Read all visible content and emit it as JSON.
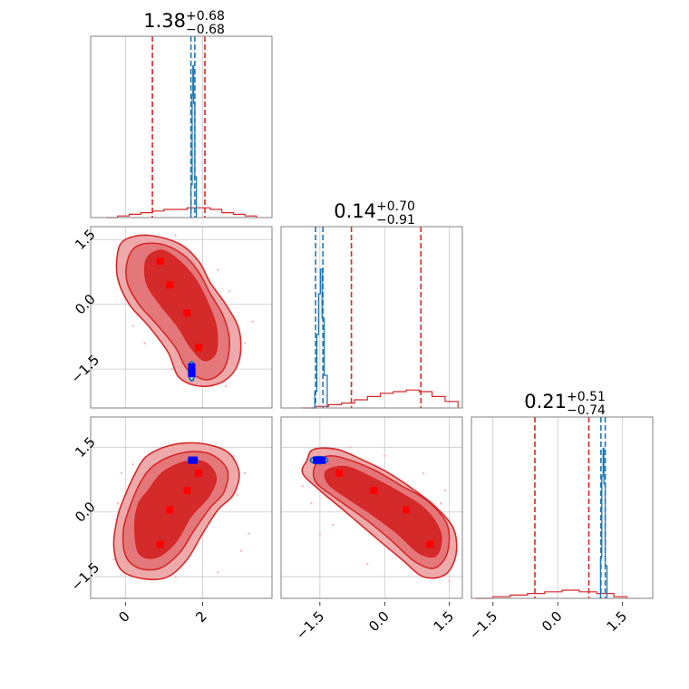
{
  "chart_data": {
    "type": "corner",
    "grid": true,
    "colors": {
      "primary": "#d62728",
      "primary_fill_dark": "#d42a2a",
      "primary_fill_mid": "#e4777a",
      "primary_fill_light": "#eeaaab",
      "primary_markers": "#ff0000",
      "secondary": "#1f77b4",
      "secondary_markers": "#0000ff",
      "scatter": "#f4b6c2"
    },
    "titles": [
      {
        "value": "1.38",
        "upper": "+0.68",
        "lower": "−0.68"
      },
      {
        "value": "0.14",
        "upper": "+0.70",
        "lower": "−0.91"
      },
      {
        "value": "0.21",
        "upper": "+0.51",
        "lower": "−0.74"
      }
    ],
    "axes": {
      "p0": {
        "range": [
          -0.9,
          3.8
        ],
        "ticks": [
          "0",
          "2"
        ],
        "tick_values": [
          0,
          2
        ]
      },
      "p1": {
        "range": [
          -2.4,
          1.8
        ],
        "ticks": [
          "−1.5",
          "0.0",
          "1.5"
        ],
        "tick_values": [
          -1.5,
          0,
          1.5
        ]
      },
      "p2": {
        "range": [
          -2.0,
          2.2
        ],
        "ticks": [
          "−1.5",
          "0.0",
          "1.5"
        ],
        "tick_values": [
          -1.5,
          0,
          1.5
        ]
      }
    },
    "histograms": [
      {
        "param": "p0",
        "red_quantiles": [
          0.7,
          2.06
        ],
        "red_hist": {
          "x": [
            -0.5,
            -0.2,
            0.1,
            0.4,
            0.7,
            1.0,
            1.3,
            1.6,
            1.9,
            2.2,
            2.5,
            2.8,
            3.1,
            3.4
          ],
          "y": [
            0.0,
            0.01,
            0.02,
            0.03,
            0.04,
            0.05,
            0.05,
            0.06,
            0.06,
            0.05,
            0.03,
            0.02,
            0.01,
            0.0
          ]
        },
        "blue_quantiles": [
          1.7,
          1.8
        ],
        "blue_hist": {
          "x": [
            1.66,
            1.7,
            1.73,
            1.75,
            1.77,
            1.8,
            1.84
          ],
          "y": [
            0.0,
            0.2,
            0.75,
            0.93,
            0.7,
            0.25,
            0.0
          ]
        }
      },
      {
        "param": "p1",
        "red_quantiles": [
          -0.77,
          0.84
        ],
        "red_hist": {
          "x": [
            -1.9,
            -1.6,
            -1.3,
            -1.0,
            -0.7,
            -0.4,
            -0.1,
            0.2,
            0.5,
            0.8,
            1.1,
            1.4,
            1.7
          ],
          "y": [
            0.0,
            0.01,
            0.02,
            0.03,
            0.05,
            0.07,
            0.09,
            0.1,
            0.11,
            0.1,
            0.07,
            0.04,
            0.02
          ]
        },
        "blue_quantiles": [
          -1.6,
          -1.43
        ],
        "blue_hist": {
          "x": [
            -1.68,
            -1.62,
            -1.57,
            -1.53,
            -1.49,
            -1.45,
            -1.4,
            -1.33
          ],
          "y": [
            0.0,
            0.1,
            0.45,
            0.7,
            0.85,
            0.55,
            0.2,
            0.0
          ]
        }
      },
      {
        "param": "p2",
        "red_quantiles": [
          -0.53,
          0.72
        ],
        "red_hist": {
          "x": [
            -1.9,
            -1.5,
            -1.1,
            -0.7,
            -0.3,
            0.1,
            0.5,
            0.9,
            1.3,
            1.6
          ],
          "y": [
            0.0,
            0.01,
            0.02,
            0.03,
            0.04,
            0.05,
            0.04,
            0.03,
            0.01,
            0.0
          ]
        },
        "blue_quantiles": [
          1.0,
          1.1
        ],
        "blue_hist": {
          "x": [
            0.95,
            0.99,
            1.02,
            1.05,
            1.07,
            1.1,
            1.14
          ],
          "y": [
            0.0,
            0.25,
            0.75,
            0.92,
            0.7,
            0.2,
            0.0
          ]
        }
      }
    ],
    "panels2d": [
      {
        "x": "p0",
        "y": "p1",
        "red_points": [
          [
            0.9,
            1.0
          ],
          [
            1.15,
            0.45
          ],
          [
            1.6,
            -0.2
          ],
          [
            1.9,
            -1.0
          ]
        ],
        "blue_points": [
          [
            1.72,
            -1.45
          ],
          [
            1.72,
            -1.53
          ],
          [
            1.72,
            -1.6
          ]
        ],
        "blue_ellipse": {
          "cx": 1.72,
          "cy": -1.55,
          "rx": 0.08,
          "ry": 0.22
        },
        "scatter": [
          [
            -0.1,
            0.6
          ],
          [
            0.4,
            1.5
          ],
          [
            2.4,
            0.8
          ],
          [
            2.6,
            -1.9
          ],
          [
            0.2,
            -0.5
          ],
          [
            3.1,
            -0.9
          ],
          [
            -0.2,
            1.1
          ],
          [
            2.9,
            -1.2
          ],
          [
            1.2,
            -1.5
          ],
          [
            0.5,
            -0.9
          ],
          [
            2.7,
            0.3
          ],
          [
            1.3,
            1.6
          ],
          [
            3.3,
            -0.4
          ],
          [
            0.3,
            -0.1
          ]
        ],
        "contours": {
          "light": [
            [
              -0.2,
              1.2
            ],
            [
              0.0,
              1.5
            ],
            [
              0.6,
              1.6
            ],
            [
              1.4,
              1.4
            ],
            [
              1.9,
              1.0
            ],
            [
              2.2,
              0.5
            ],
            [
              2.6,
              0.0
            ],
            [
              2.95,
              -0.6
            ],
            [
              2.95,
              -1.3
            ],
            [
              2.6,
              -1.75
            ],
            [
              2.0,
              -1.9
            ],
            [
              1.4,
              -1.7
            ],
            [
              1.1,
              -1.1
            ],
            [
              0.6,
              -0.5
            ],
            [
              0.1,
              0.0
            ],
            [
              -0.2,
              0.6
            ]
          ],
          "mid": [
            [
              0.05,
              1.0
            ],
            [
              0.3,
              1.35
            ],
            [
              0.9,
              1.4
            ],
            [
              1.5,
              1.15
            ],
            [
              1.9,
              0.75
            ],
            [
              2.2,
              0.25
            ],
            [
              2.55,
              -0.3
            ],
            [
              2.7,
              -0.9
            ],
            [
              2.55,
              -1.5
            ],
            [
              2.1,
              -1.75
            ],
            [
              1.6,
              -1.5
            ],
            [
              1.3,
              -1.0
            ],
            [
              0.8,
              -0.45
            ],
            [
              0.35,
              0.0
            ],
            [
              0.05,
              0.5
            ]
          ],
          "dark": [
            [
              0.55,
              1.05
            ],
            [
              0.95,
              1.25
            ],
            [
              1.4,
              1.0
            ],
            [
              1.8,
              0.6
            ],
            [
              2.1,
              0.1
            ],
            [
              2.35,
              -0.5
            ],
            [
              2.35,
              -1.1
            ],
            [
              2.05,
              -1.3
            ],
            [
              1.7,
              -1.0
            ],
            [
              1.35,
              -0.5
            ],
            [
              0.9,
              0.0
            ],
            [
              0.55,
              0.5
            ]
          ]
        }
      },
      {
        "x": "p0",
        "y": "p2",
        "red_points": [
          [
            0.9,
            -0.75
          ],
          [
            1.15,
            0.05
          ],
          [
            1.6,
            0.5
          ],
          [
            1.9,
            0.9
          ]
        ],
        "blue_points": [
          [
            1.72,
            1.2
          ],
          [
            1.78,
            1.2
          ]
        ],
        "blue_ellipse": {
          "cx": 1.75,
          "cy": 1.2,
          "rx": 0.12,
          "ry": 0.06
        },
        "scatter": [
          [
            -0.2,
            0.2
          ],
          [
            0.2,
            1.1
          ],
          [
            2.9,
            0.4
          ],
          [
            3.2,
            -0.5
          ],
          [
            -0.3,
            -1.1
          ],
          [
            0.5,
            -1.4
          ],
          [
            2.8,
            1.3
          ],
          [
            3.0,
            -0.9
          ],
          [
            1.3,
            -1.5
          ],
          [
            2.4,
            -1.4
          ],
          [
            -0.1,
            0.9
          ],
          [
            3.1,
            0.9
          ]
        ],
        "contours": {
          "light": [
            [
              0.2,
              0.8
            ],
            [
              0.5,
              1.25
            ],
            [
              1.0,
              1.5
            ],
            [
              1.6,
              1.6
            ],
            [
              2.2,
              1.55
            ],
            [
              2.7,
              1.35
            ],
            [
              2.95,
              0.9
            ],
            [
              2.8,
              0.4
            ],
            [
              2.4,
              0.05
            ],
            [
              2.0,
              -0.5
            ],
            [
              1.6,
              -1.1
            ],
            [
              1.1,
              -1.5
            ],
            [
              0.5,
              -1.55
            ],
            [
              -0.1,
              -1.35
            ],
            [
              -0.3,
              -0.8
            ],
            [
              -0.2,
              -0.1
            ],
            [
              0.0,
              0.4
            ]
          ],
          "mid": [
            [
              0.4,
              0.7
            ],
            [
              0.7,
              1.05
            ],
            [
              1.2,
              1.3
            ],
            [
              1.8,
              1.4
            ],
            [
              2.3,
              1.3
            ],
            [
              2.65,
              0.95
            ],
            [
              2.55,
              0.45
            ],
            [
              2.2,
              0.1
            ],
            [
              1.8,
              -0.4
            ],
            [
              1.4,
              -0.95
            ],
            [
              0.9,
              -1.3
            ],
            [
              0.35,
              -1.3
            ],
            [
              0.0,
              -1.0
            ],
            [
              -0.05,
              -0.4
            ],
            [
              0.15,
              0.2
            ]
          ],
          "dark": [
            [
              0.6,
              0.5
            ],
            [
              0.95,
              0.9
            ],
            [
              1.5,
              1.15
            ],
            [
              2.05,
              1.15
            ],
            [
              2.35,
              0.8
            ],
            [
              2.15,
              0.35
            ],
            [
              1.7,
              -0.1
            ],
            [
              1.3,
              -0.7
            ],
            [
              0.8,
              -1.05
            ],
            [
              0.35,
              -0.95
            ],
            [
              0.25,
              -0.3
            ],
            [
              0.35,
              0.2
            ]
          ]
        }
      },
      {
        "x": "p1",
        "y": "p2",
        "red_points": [
          [
            -1.05,
            0.9
          ],
          [
            -0.25,
            0.5
          ],
          [
            0.5,
            0.05
          ],
          [
            1.05,
            -0.75
          ]
        ],
        "blue_points": [
          [
            -1.45,
            1.2
          ],
          [
            -1.52,
            1.2
          ],
          [
            -1.58,
            1.2
          ]
        ],
        "blue_ellipse": {
          "cx": -1.52,
          "cy": 1.2,
          "rx": 0.2,
          "ry": 0.08
        },
        "scatter": [
          [
            -1.9,
            0.6
          ],
          [
            -1.5,
            -0.5
          ],
          [
            1.4,
            0.5
          ],
          [
            1.5,
            -1.6
          ],
          [
            -0.8,
            1.5
          ],
          [
            0.0,
            1.3
          ],
          [
            -1.2,
            -0.3
          ],
          [
            0.9,
            0.9
          ],
          [
            -0.4,
            -1.2
          ],
          [
            1.3,
            0.2
          ],
          [
            -1.7,
            0.2
          ]
        ],
        "contours": {
          "light": [
            [
              -1.8,
              1.2
            ],
            [
              -1.65,
              1.45
            ],
            [
              -1.1,
              1.45
            ],
            [
              -0.5,
              1.2
            ],
            [
              0.1,
              0.9
            ],
            [
              0.7,
              0.5
            ],
            [
              1.2,
              0.1
            ],
            [
              1.6,
              -0.4
            ],
            [
              1.65,
              -1.0
            ],
            [
              1.4,
              -1.45
            ],
            [
              0.9,
              -1.5
            ],
            [
              0.4,
              -1.1
            ],
            [
              -0.2,
              -0.6
            ],
            [
              -0.9,
              0.0
            ],
            [
              -1.5,
              0.5
            ],
            [
              -1.9,
              0.9
            ]
          ],
          "mid": [
            [
              -1.6,
              1.1
            ],
            [
              -1.3,
              1.3
            ],
            [
              -0.8,
              1.2
            ],
            [
              -0.2,
              0.95
            ],
            [
              0.4,
              0.6
            ],
            [
              1.0,
              0.25
            ],
            [
              1.45,
              -0.3
            ],
            [
              1.45,
              -0.95
            ],
            [
              1.15,
              -1.3
            ],
            [
              0.7,
              -1.15
            ],
            [
              0.2,
              -0.7
            ],
            [
              -0.4,
              -0.2
            ],
            [
              -1.1,
              0.3
            ],
            [
              -1.6,
              0.7
            ]
          ],
          "dark": [
            [
              -1.35,
              0.95
            ],
            [
              -0.9,
              1.05
            ],
            [
              -0.3,
              0.8
            ],
            [
              0.35,
              0.45
            ],
            [
              0.95,
              0.05
            ],
            [
              1.3,
              -0.5
            ],
            [
              1.2,
              -1.0
            ],
            [
              0.8,
              -0.95
            ],
            [
              0.3,
              -0.5
            ],
            [
              -0.3,
              -0.05
            ],
            [
              -0.9,
              0.35
            ],
            [
              -1.3,
              0.65
            ]
          ]
        }
      }
    ]
  }
}
